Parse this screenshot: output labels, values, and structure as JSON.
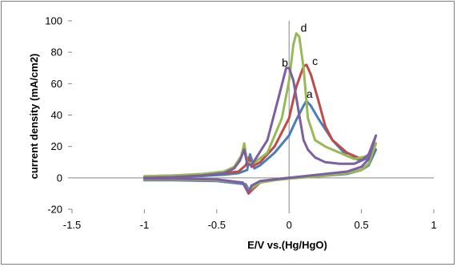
{
  "chart_data": {
    "type": "line",
    "title": "",
    "xlabel": "E/V vs.(Hg/HgO)",
    "ylabel": "current density (mA/cm2)",
    "xlim": [
      -1.5,
      1
    ],
    "ylim": [
      -20,
      100
    ],
    "x_ticks": [
      -1.5,
      -1,
      -0.5,
      0,
      0.5,
      1
    ],
    "y_ticks": [
      -20,
      0,
      20,
      40,
      60,
      80,
      100
    ],
    "x_tick_labels": [
      "-1.5",
      "-1",
      "-0.5",
      "0",
      "0.5",
      "1"
    ],
    "y_tick_labels": [
      "-20",
      "0",
      "20",
      "40",
      "60",
      "80",
      "100"
    ],
    "grid": false,
    "legend": "none",
    "series": [
      {
        "label": "a",
        "color": "#4A7EBB",
        "label_at": [
          0.12,
          51
        ],
        "forward": [
          [
            -1,
            0
          ],
          [
            -0.8,
            0.5
          ],
          [
            -0.6,
            1.2
          ],
          [
            -0.45,
            2
          ],
          [
            -0.35,
            3
          ],
          [
            -0.29,
            5
          ],
          [
            -0.27,
            15
          ],
          [
            -0.24,
            6
          ],
          [
            -0.2,
            8
          ],
          [
            -0.1,
            16
          ],
          [
            0,
            27
          ],
          [
            0.05,
            37
          ],
          [
            0.1,
            46
          ],
          [
            0.12,
            49
          ],
          [
            0.15,
            46
          ],
          [
            0.2,
            38
          ],
          [
            0.3,
            24
          ],
          [
            0.4,
            14
          ],
          [
            0.5,
            11
          ],
          [
            0.55,
            13
          ],
          [
            0.6,
            18
          ]
        ],
        "reverse": [
          [
            0.6,
            18
          ],
          [
            0.55,
            8
          ],
          [
            0.5,
            5
          ],
          [
            0.4,
            2.5
          ],
          [
            0.2,
            1
          ],
          [
            0,
            0
          ],
          [
            -0.1,
            -1
          ],
          [
            -0.2,
            -3
          ],
          [
            -0.25,
            -7
          ],
          [
            -0.27,
            -9
          ],
          [
            -0.3,
            -4
          ],
          [
            -0.5,
            -2
          ],
          [
            -0.8,
            -1.5
          ],
          [
            -1,
            -1.5
          ]
        ]
      },
      {
        "label": "c",
        "color": "#BE4B48",
        "label_at": [
          0.16,
          72
        ],
        "forward": [
          [
            -1,
            1
          ],
          [
            -0.8,
            1.5
          ],
          [
            -0.6,
            2
          ],
          [
            -0.45,
            3
          ],
          [
            -0.35,
            4
          ],
          [
            -0.3,
            8
          ],
          [
            -0.28,
            13
          ],
          [
            -0.26,
            7
          ],
          [
            -0.2,
            10
          ],
          [
            -0.1,
            20
          ],
          [
            0,
            38
          ],
          [
            0.05,
            58
          ],
          [
            0.1,
            71
          ],
          [
            0.12,
            72
          ],
          [
            0.15,
            66
          ],
          [
            0.2,
            50
          ],
          [
            0.25,
            33
          ],
          [
            0.3,
            24
          ],
          [
            0.4,
            16
          ],
          [
            0.5,
            12
          ],
          [
            0.55,
            14
          ],
          [
            0.6,
            22
          ]
        ],
        "reverse": [
          [
            0.6,
            22
          ],
          [
            0.55,
            9
          ],
          [
            0.5,
            5
          ],
          [
            0.4,
            3
          ],
          [
            0.2,
            1
          ],
          [
            0,
            0
          ],
          [
            -0.1,
            -1
          ],
          [
            -0.2,
            -3
          ],
          [
            -0.26,
            -8
          ],
          [
            -0.28,
            -10
          ],
          [
            -0.32,
            -3
          ],
          [
            -0.5,
            -1.5
          ],
          [
            -0.8,
            -1
          ],
          [
            -1,
            -1
          ]
        ]
      },
      {
        "label": "d",
        "color": "#98B954",
        "label_at": [
          0.08,
          93
        ],
        "forward": [
          [
            -1,
            1
          ],
          [
            -0.8,
            1.5
          ],
          [
            -0.6,
            2.5
          ],
          [
            -0.45,
            4
          ],
          [
            -0.38,
            7
          ],
          [
            -0.33,
            14
          ],
          [
            -0.31,
            22
          ],
          [
            -0.29,
            10
          ],
          [
            -0.25,
            9
          ],
          [
            -0.15,
            16
          ],
          [
            -0.05,
            38
          ],
          [
            0,
            62
          ],
          [
            0.03,
            85
          ],
          [
            0.05,
            92
          ],
          [
            0.07,
            90
          ],
          [
            0.1,
            70
          ],
          [
            0.13,
            38
          ],
          [
            0.18,
            24
          ],
          [
            0.25,
            20
          ],
          [
            0.35,
            16
          ],
          [
            0.45,
            12
          ],
          [
            0.55,
            14
          ],
          [
            0.6,
            22
          ]
        ],
        "reverse": [
          [
            0.6,
            22
          ],
          [
            0.55,
            9
          ],
          [
            0.5,
            5
          ],
          [
            0.4,
            3
          ],
          [
            0.2,
            1
          ],
          [
            0,
            -0.5
          ],
          [
            -0.1,
            -1.5
          ],
          [
            -0.2,
            -3
          ],
          [
            -0.25,
            -6
          ],
          [
            -0.28,
            -8
          ],
          [
            -0.32,
            -3
          ],
          [
            -0.5,
            -1.5
          ],
          [
            -0.8,
            -1
          ],
          [
            -1,
            -1
          ]
        ]
      },
      {
        "label": "b",
        "color": "#7D5FA0",
        "label_at": [
          -0.05,
          71
        ],
        "forward": [
          [
            -1,
            0
          ],
          [
            -0.8,
            0.5
          ],
          [
            -0.6,
            1.5
          ],
          [
            -0.45,
            3
          ],
          [
            -0.38,
            6
          ],
          [
            -0.34,
            11
          ],
          [
            -0.31,
            18
          ],
          [
            -0.29,
            9
          ],
          [
            -0.26,
            8
          ],
          [
            -0.15,
            24
          ],
          [
            -0.07,
            52
          ],
          [
            -0.02,
            70
          ],
          [
            0,
            70
          ],
          [
            0.03,
            62
          ],
          [
            0.07,
            40
          ],
          [
            0.1,
            24
          ],
          [
            0.13,
            18
          ],
          [
            0.18,
            13
          ],
          [
            0.25,
            10
          ],
          [
            0.35,
            9
          ],
          [
            0.45,
            9
          ],
          [
            0.5,
            11
          ],
          [
            0.55,
            15
          ],
          [
            0.6,
            27
          ]
        ],
        "reverse": [
          [
            0.6,
            27
          ],
          [
            0.55,
            12
          ],
          [
            0.5,
            7
          ],
          [
            0.4,
            4
          ],
          [
            0.2,
            2
          ],
          [
            0,
            0
          ],
          [
            -0.1,
            -1
          ],
          [
            -0.2,
            -2
          ],
          [
            -0.26,
            -5
          ],
          [
            -0.28,
            -9
          ],
          [
            -0.32,
            -3
          ],
          [
            -0.5,
            -1
          ],
          [
            -0.8,
            -0.5
          ],
          [
            -1,
            -0.5
          ]
        ]
      }
    ]
  }
}
